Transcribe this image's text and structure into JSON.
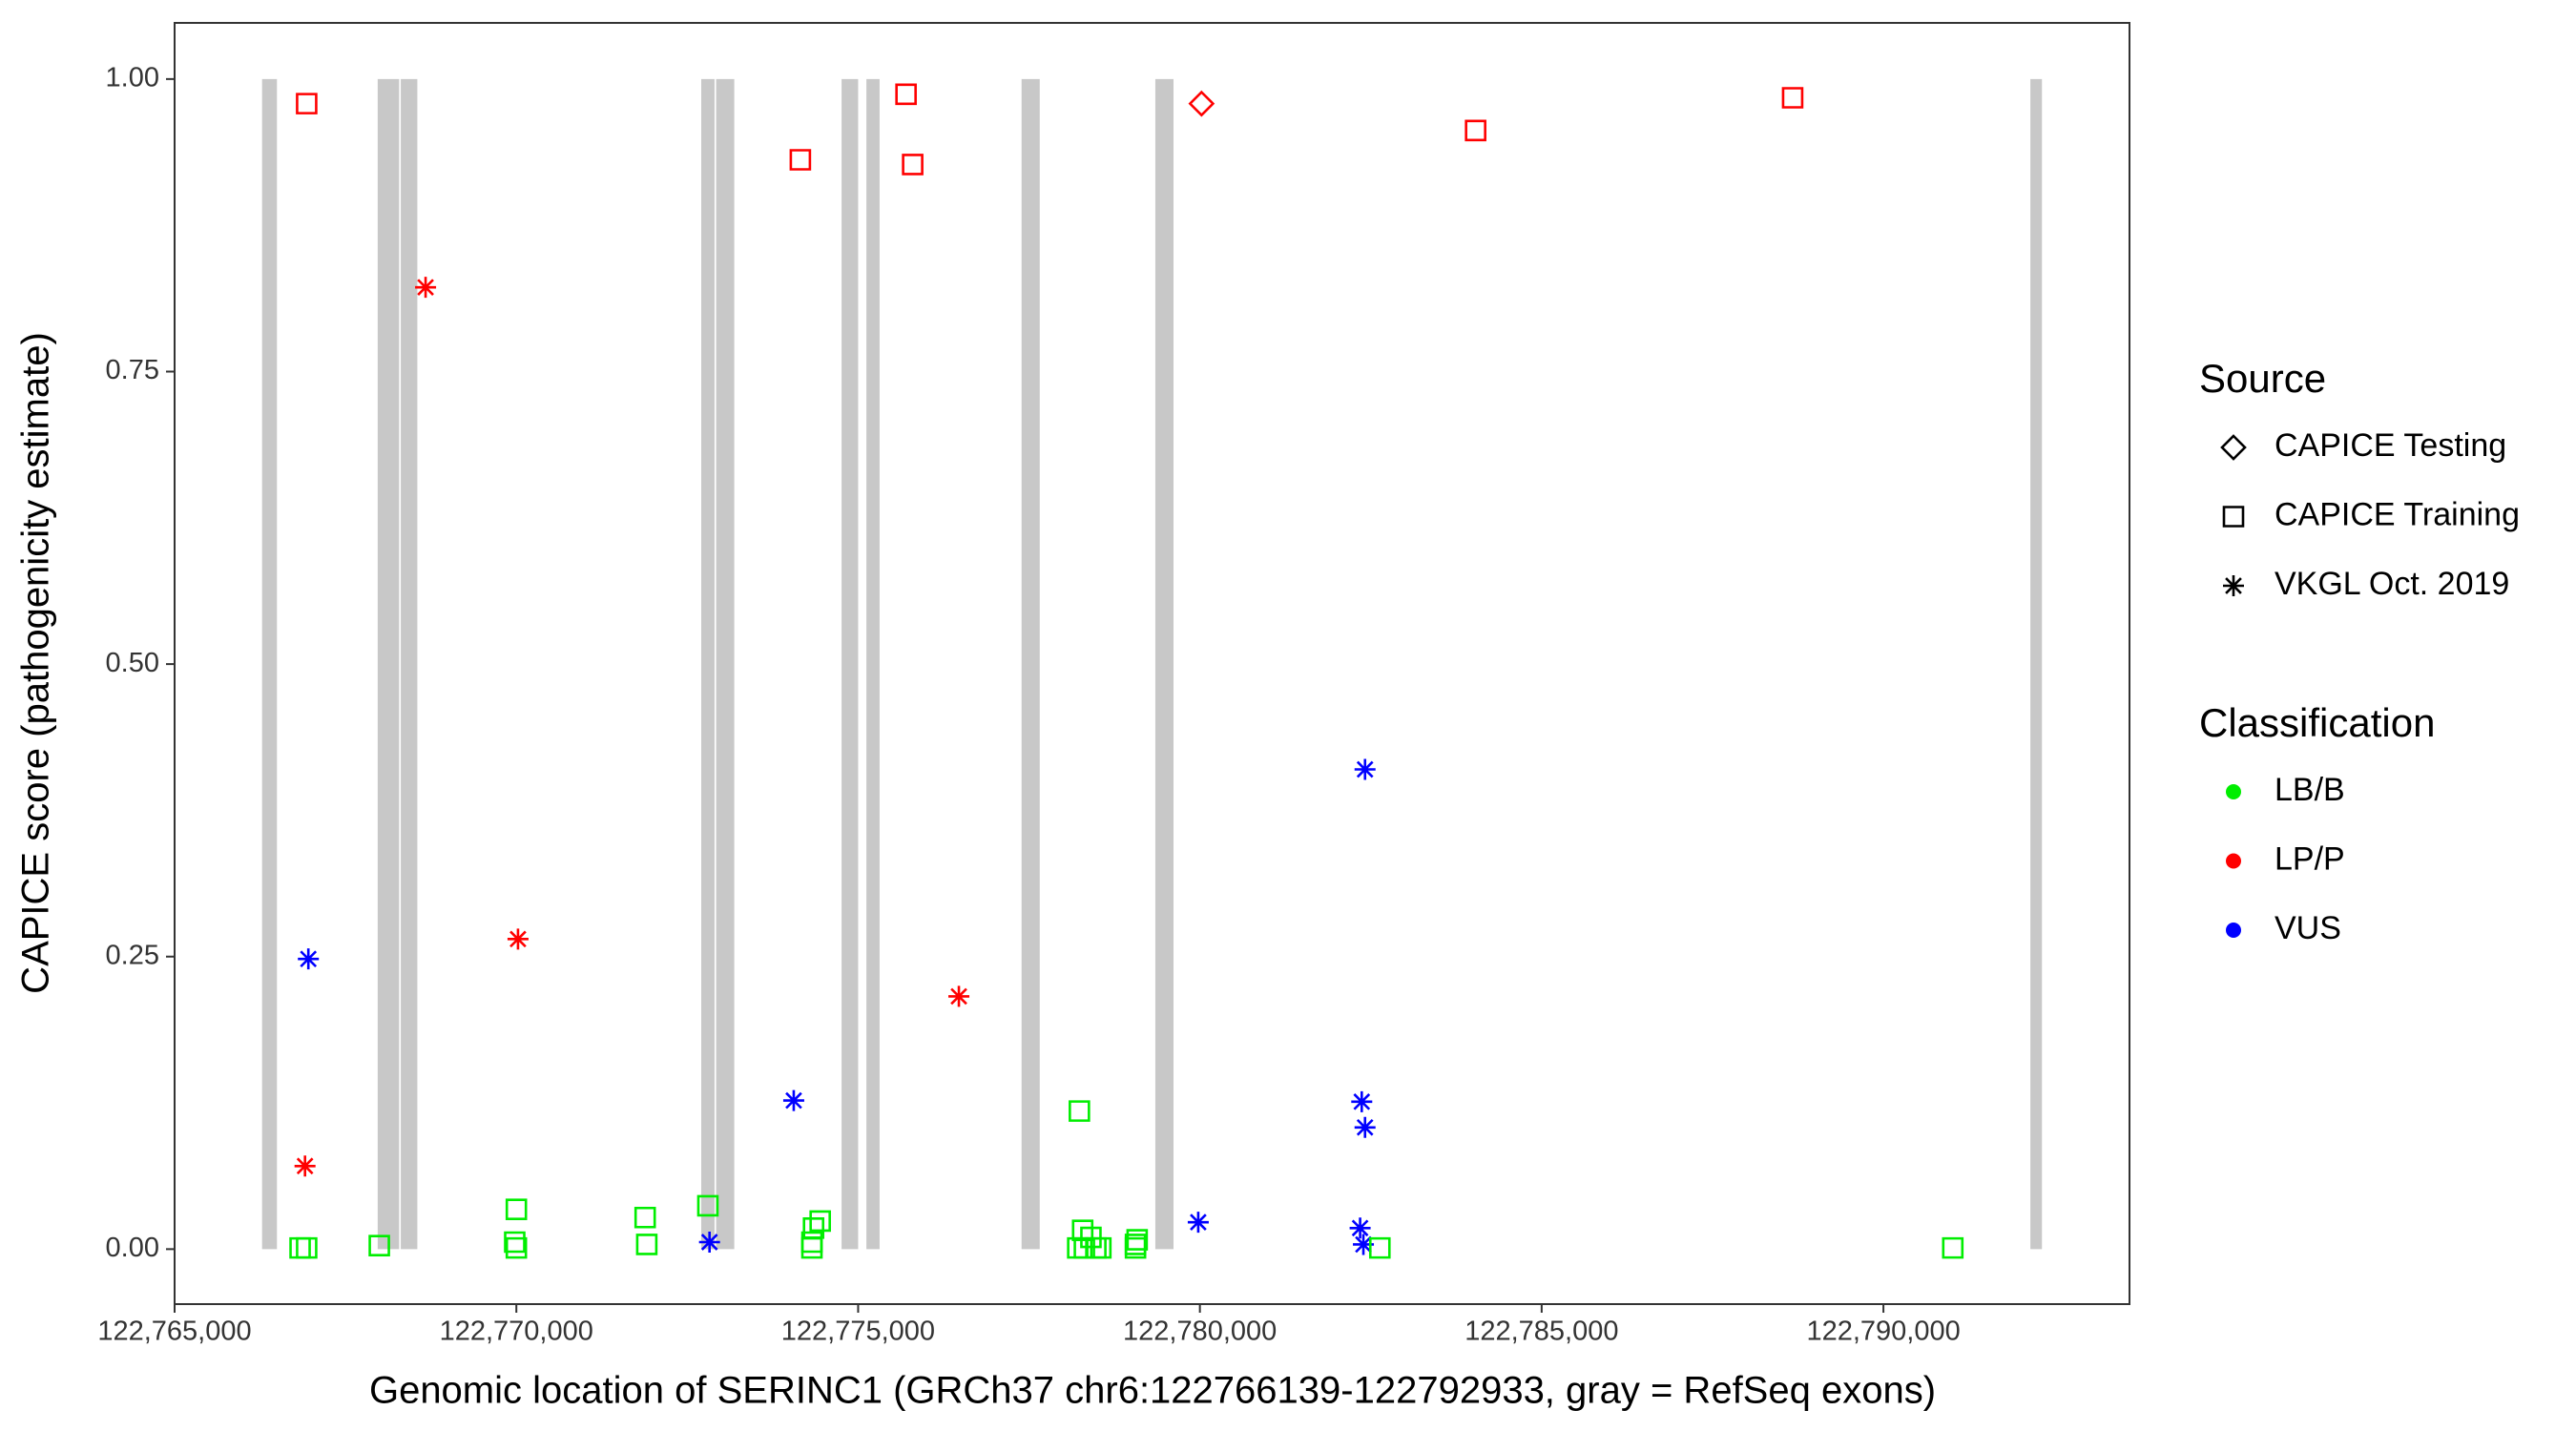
{
  "chart_data": {
    "type": "scatter",
    "x_label": "Genomic location of SERINC1 (GRCh37 chr6:122766139-122792933, gray = RefSeq exons)",
    "y_label": "CAPICE score (pathogenicity estimate)",
    "xlim": [
      122765000,
      122793600
    ],
    "ylim": [
      -0.047,
      1.048
    ],
    "xticks": [
      {
        "value": 122765000,
        "label": "122,765,000"
      },
      {
        "value": 122770000,
        "label": "122,770,000"
      },
      {
        "value": 122775000,
        "label": "122,775,000"
      },
      {
        "value": 122780000,
        "label": "122,780,000"
      },
      {
        "value": 122785000,
        "label": "122,785,000"
      },
      {
        "value": 122790000,
        "label": "122,790,000"
      }
    ],
    "yticks": [
      {
        "value": 0,
        "label": "0.00"
      },
      {
        "value": 0.25,
        "label": "0.25"
      },
      {
        "value": 0.5,
        "label": "0.50"
      },
      {
        "value": 0.75,
        "label": "0.75"
      },
      {
        "value": 1,
        "label": "1.00"
      }
    ],
    "grid": false,
    "exon_color": "#c8c8c8",
    "exon_y": [
      0,
      1
    ],
    "exons": [
      {
        "start": 122766280,
        "end": 122766497
      },
      {
        "start": 122767971,
        "end": 122768285
      },
      {
        "start": 122768309,
        "end": 122768551
      },
      {
        "start": 122772705,
        "end": 122772899
      },
      {
        "start": 122772923,
        "end": 122773188
      },
      {
        "start": 122774758,
        "end": 122775000
      },
      {
        "start": 122775121,
        "end": 122775314
      },
      {
        "start": 122777391,
        "end": 122777657
      },
      {
        "start": 122779348,
        "end": 122779614
      },
      {
        "start": 122792150,
        "end": 122792319
      }
    ],
    "legend": {
      "source": {
        "title": "Source",
        "items": [
          {
            "name": "CAPICE Testing",
            "shape": "diamond"
          },
          {
            "name": "CAPICE Training",
            "shape": "square"
          },
          {
            "name": "VKGL Oct. 2019",
            "shape": "star"
          }
        ]
      },
      "classification": {
        "title": "Classification",
        "items": [
          {
            "name": "LB/B",
            "color": "#00ee00"
          },
          {
            "name": "LP/P",
            "color": "#ff0000"
          },
          {
            "name": "VUS",
            "color": "#0000ff"
          }
        ]
      }
    },
    "series": [
      {
        "shape": "square",
        "color": "#ff0000",
        "x": [
          122766932,
          122774155,
          122775701,
          122775798,
          122784034,
          122788672
        ],
        "y": [
          0.979,
          0.931,
          0.987,
          0.927,
          0.956,
          0.984
        ]
      },
      {
        "shape": "diamond",
        "color": "#ff0000",
        "x": [
          122780024
        ],
        "y": [
          0.979
        ]
      },
      {
        "shape": "star",
        "color": "#ff0000",
        "x": [
          122768672,
          122770024,
          122766908,
          122776474
        ],
        "y": [
          0.822,
          0.265,
          0.071,
          0.216
        ]
      },
      {
        "shape": "star",
        "color": "#0000ff",
        "x": [
          122766957,
          122772826,
          122774058,
          122779976,
          122782416,
          122782368,
          122782416,
          122782344,
          122782392
        ],
        "y": [
          0.248,
          0.006,
          0.127,
          0.023,
          0.41,
          0.126,
          0.104,
          0.018,
          0.004
        ]
      },
      {
        "shape": "square",
        "color": "#00ee00",
        "x": [
          122766836,
          122766932,
          122767995,
          122770000,
          122769976,
          122770000,
          122771884,
          122771908,
          122772802,
          122774348,
          122774324,
          122774324,
          122774445,
          122778237,
          122778285,
          122778213,
          122778310,
          122778406,
          122778478,
          122778551,
          122779058,
          122779058,
          122779082,
          122782633,
          122791015
        ],
        "y": [
          0.001,
          0.001,
          0.003,
          0.034,
          0.006,
          0.001,
          0.027,
          0.004,
          0.037,
          0.018,
          0.006,
          0.001,
          0.024,
          0.118,
          0.016,
          0.001,
          0.001,
          0.01,
          0.001,
          0.001,
          0.004,
          0.001,
          0.008,
          0.001,
          0.001
        ]
      }
    ]
  }
}
